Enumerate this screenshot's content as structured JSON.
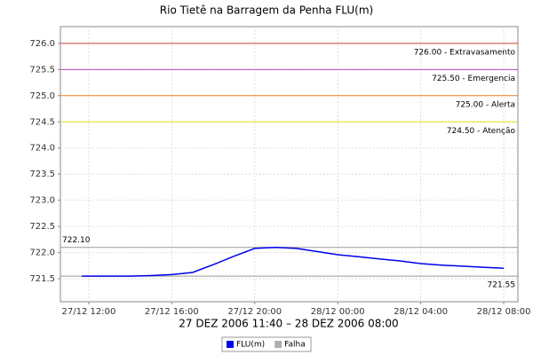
{
  "chart_data": {
    "type": "line",
    "title": "Rio Tietê na Barragem da Penha FLU(m)",
    "x_label": "27 DEZ 2006 11:40 – 28 DEZ 2006 08:00",
    "x": [
      "27/12 11:40",
      "27/12 12:00",
      "27/12 13:00",
      "27/12 14:00",
      "27/12 15:00",
      "27/12 16:00",
      "27/12 17:00",
      "27/12 18:00",
      "27/12 19:00",
      "27/12 20:00",
      "27/12 21:00",
      "27/12 22:00",
      "27/12 23:00",
      "28/12 00:00",
      "28/12 01:00",
      "28/12 02:00",
      "28/12 03:00",
      "28/12 04:00",
      "28/12 05:00",
      "28/12 06:00",
      "28/12 07:00",
      "28/12 08:00"
    ],
    "series": [
      {
        "name": "FLU(m)",
        "color": "#0000ee",
        "values": [
          721.55,
          721.55,
          721.55,
          721.55,
          721.56,
          721.58,
          721.62,
          721.77,
          721.93,
          722.08,
          722.1,
          722.08,
          722.02,
          721.96,
          721.92,
          721.88,
          721.84,
          721.79,
          721.76,
          721.74,
          721.72,
          721.7
        ]
      },
      {
        "name": "Falha",
        "color": "#b0b0b0",
        "values": [
          null,
          null,
          null,
          null,
          null,
          null,
          null,
          null,
          null,
          null,
          null,
          null,
          null,
          null,
          null,
          null,
          null,
          null,
          null,
          null,
          null,
          null
        ]
      }
    ],
    "xlim": [
      "27/12 10:38",
      "28/12 08:41"
    ],
    "xticks": [
      "27/12 12:00",
      "27/12 16:00",
      "27/12 20:00",
      "28/12 00:00",
      "28/12 04:00",
      "28/12 08:00"
    ],
    "ylim": [
      721.06,
      726.32
    ],
    "yticks": [
      721.5,
      {
        "value": 722,
        "label": "722.0"
      },
      722.5,
      {
        "value": 723,
        "label": "723.0"
      },
      723.5,
      {
        "value": 724,
        "label": "724.0"
      },
      724.5,
      {
        "value": 725,
        "label": "725.0"
      },
      725.5,
      {
        "value": 726,
        "label": "726.0"
      }
    ],
    "grid": true,
    "reference_lines": [
      {
        "value": 726,
        "label": "726.00 - Extravasamento",
        "color": "#d04030",
        "label_anchor": "right",
        "label_side": "below"
      },
      {
        "value": 725.5,
        "label": "725.50 - Emergencia",
        "color": "#c040c0",
        "label_anchor": "right",
        "label_side": "below"
      },
      {
        "value": 725,
        "label": "725.00 - Alerta",
        "color": "#f08020",
        "label_anchor": "right",
        "label_side": "below"
      },
      {
        "value": 724.5,
        "label": "724.50 - Atenção",
        "color": "#e8e020",
        "label_anchor": "right",
        "label_side": "below"
      },
      {
        "value": 722.1,
        "label": "722.10",
        "color": "#999999",
        "label_anchor": "left",
        "label_side": "above"
      },
      {
        "value": 721.55,
        "label": "721.55",
        "color": "#999999",
        "label_anchor": "right",
        "label_side": "below"
      }
    ],
    "legend": "bottom"
  }
}
